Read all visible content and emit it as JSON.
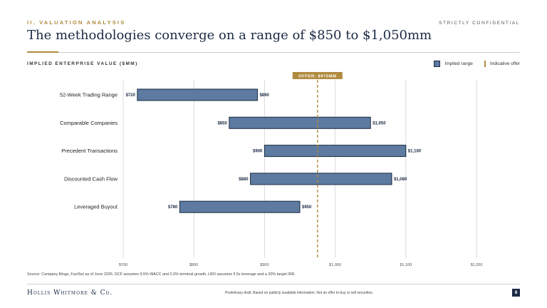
{
  "header": {
    "section": "II. VALUATION ANALYSIS",
    "confidential": "STRICTLY CONFIDENTIAL",
    "title": "The methodologies converge on a range of $850 to $1,050mm"
  },
  "legend": {
    "range_label": "Implied range",
    "offer_label": "Indicative offer",
    "range_color": "#5d7aa0",
    "offer_color": "#b08a3e"
  },
  "chart_data": {
    "type": "bar",
    "orientation": "horizontal-range",
    "ylabel": "IMPLIED ENTERPRISE VALUE ($MM)",
    "xlim": [
      700,
      1200
    ],
    "x_ticks": [
      {
        "value": 700,
        "label": "$700"
      },
      {
        "value": 800,
        "label": "$800"
      },
      {
        "value": 900,
        "label": "$900"
      },
      {
        "value": 1000,
        "label": "$1,000"
      },
      {
        "value": 1100,
        "label": "$1,100"
      },
      {
        "value": 1200,
        "label": "$1,200"
      }
    ],
    "grid": true,
    "categories": [
      "52-Week Trading Range",
      "Comparable Companies",
      "Precedent Transactions",
      "Discounted Cash Flow",
      "Leveraged Buyout"
    ],
    "low": [
      720,
      850,
      900,
      880,
      780
    ],
    "high": [
      890,
      1050,
      1100,
      1080,
      950
    ],
    "low_labels": [
      "$720",
      "$850",
      "$900",
      "$880",
      "$780"
    ],
    "high_labels": [
      "$890",
      "$1,050",
      "$1,100",
      "$1,080",
      "$950"
    ],
    "offer": {
      "value": 975,
      "label": "OFFER: $975MM"
    }
  },
  "footer": {
    "source": "Source: Company filings, FactSet as of June 2026. DCF assumes 9.5% WACC and 2.0% terminal growth, LBO assumes 5.5x leverage and a 20% target IRR.",
    "brand": "Hollis Whitmore & Co.",
    "disclaimer": "Preliminary draft. Based on publicly available information. Not an offer to buy or sell securities.",
    "page": "8"
  }
}
